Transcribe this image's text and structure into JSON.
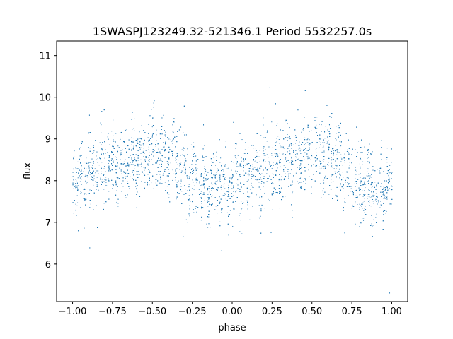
{
  "chart_data": {
    "type": "scatter",
    "title": "1SWASPJ123249.32-521346.1 Period 5532257.0s",
    "xlabel": "phase",
    "ylabel": "flux",
    "xlim": [
      -1.1,
      1.1
    ],
    "ylim": [
      5.1,
      11.35
    ],
    "xticks": [
      -1.0,
      -0.75,
      -0.5,
      -0.25,
      0.0,
      0.25,
      0.5,
      0.75,
      1.0
    ],
    "xtick_labels": [
      "−1.00",
      "−0.75",
      "−0.50",
      "−0.25",
      "0.00",
      "0.25",
      "0.50",
      "0.75",
      "1.00"
    ],
    "yticks": [
      6,
      7,
      8,
      9,
      10,
      11
    ],
    "ytick_labels": [
      "6",
      "7",
      "8",
      "9",
      "10",
      "11"
    ],
    "grid": false,
    "point_color": "#1f77b4",
    "series": [
      {
        "phase_range": [
          -1.0,
          1.0
        ],
        "trend_phase": [
          -1.0,
          -0.9,
          -0.8,
          -0.7,
          -0.6,
          -0.5,
          -0.4,
          -0.3,
          -0.2,
          -0.1,
          0.0,
          0.1,
          0.2,
          0.3,
          0.4,
          0.5,
          0.6,
          0.7,
          0.8,
          0.9,
          1.0
        ],
        "trend_flux": [
          7.9,
          8.1,
          8.3,
          8.4,
          8.5,
          8.7,
          8.6,
          8.2,
          7.9,
          7.8,
          7.9,
          8.1,
          8.3,
          8.4,
          8.5,
          8.7,
          8.6,
          8.2,
          7.9,
          7.8,
          7.9
        ]
      }
    ]
  }
}
